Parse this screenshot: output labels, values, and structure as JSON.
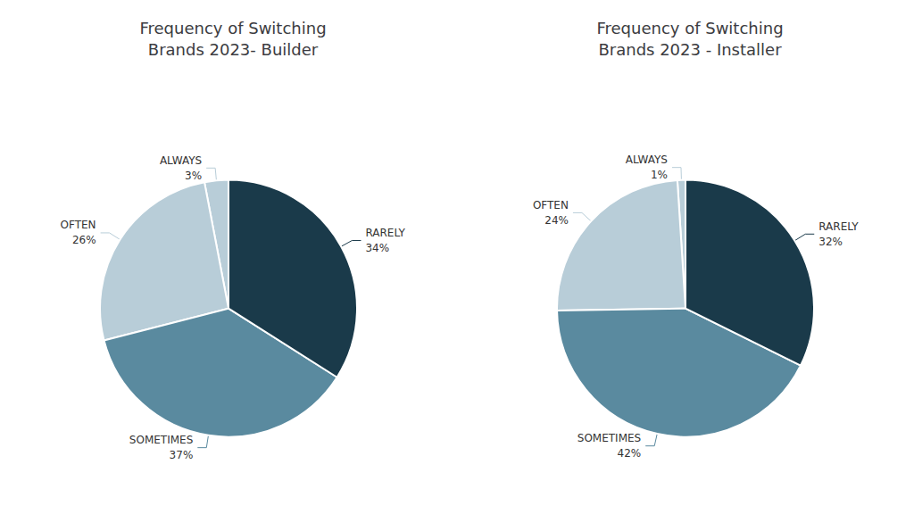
{
  "chart_data": [
    {
      "type": "pie",
      "title": "Frequency of Switching\nBrands 2023- Builder",
      "categories": [
        "ALWAYS",
        "OFTEN",
        "SOMETIMES",
        "RARELY"
      ],
      "values": [
        3,
        26,
        37,
        34
      ],
      "value_labels": [
        "3%",
        "26%",
        "37%",
        "34%"
      ],
      "colors": [
        "#b8cdd8",
        "#b8cdd8",
        "#5a8a9f",
        "#1a3a4a"
      ],
      "data_labels": true
    },
    {
      "type": "pie",
      "title": "Frequency of Switching\nBrands 2023 - Installer",
      "categories": [
        "ALWAYS",
        "OFTEN",
        "SOMETIMES",
        "RARELY"
      ],
      "values": [
        1,
        24,
        42,
        32
      ],
      "value_labels": [
        "1%",
        "24%",
        "42%",
        "32%"
      ],
      "colors": [
        "#b8cdd8",
        "#b8cdd8",
        "#5a8a9f",
        "#1a3a4a"
      ],
      "data_labels": true
    }
  ]
}
